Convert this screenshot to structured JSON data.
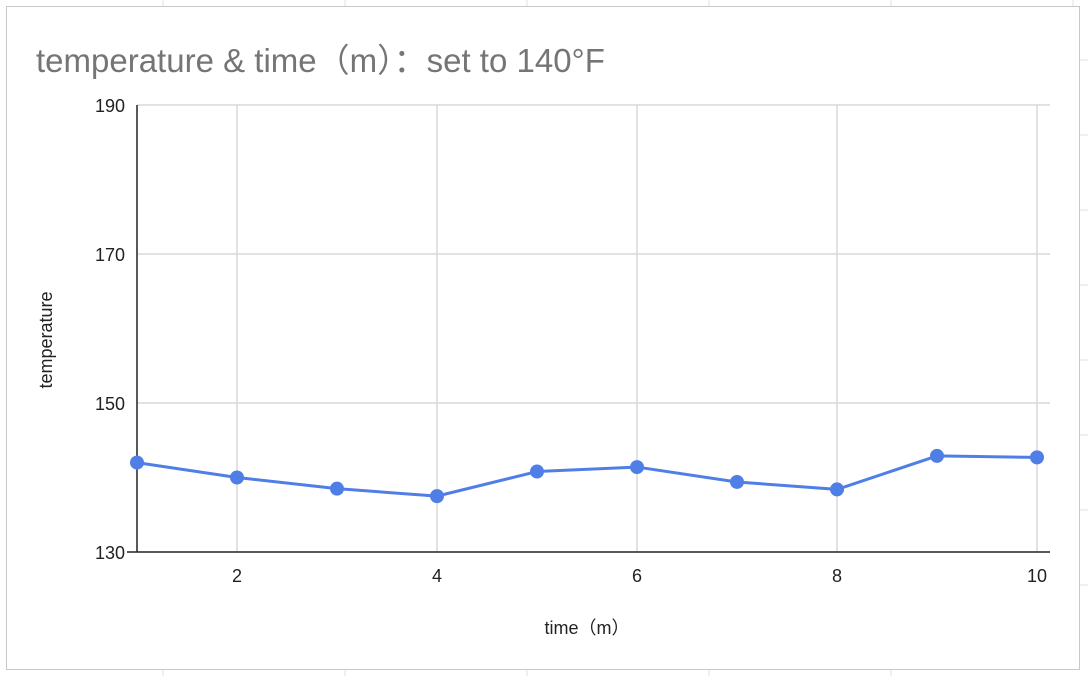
{
  "chart_data": {
    "type": "line",
    "title": "temperature & time（m）：set to 140°F",
    "xlabel": "time（m）",
    "ylabel": "temperature",
    "xlim": [
      1,
      10
    ],
    "ylim": [
      130,
      190
    ],
    "x_ticks": [
      2,
      4,
      6,
      8,
      10
    ],
    "y_ticks": [
      130,
      150,
      170,
      190
    ],
    "grid": true,
    "legend": "none",
    "color": "#4f7fe6",
    "series": [
      {
        "x": [
          1,
          2,
          3,
          4,
          5,
          6,
          7,
          8,
          9,
          10
        ],
        "values": [
          142,
          140,
          138.5,
          137.5,
          140.8,
          141.4,
          139.4,
          138.4,
          142.9,
          142.7
        ]
      }
    ]
  }
}
